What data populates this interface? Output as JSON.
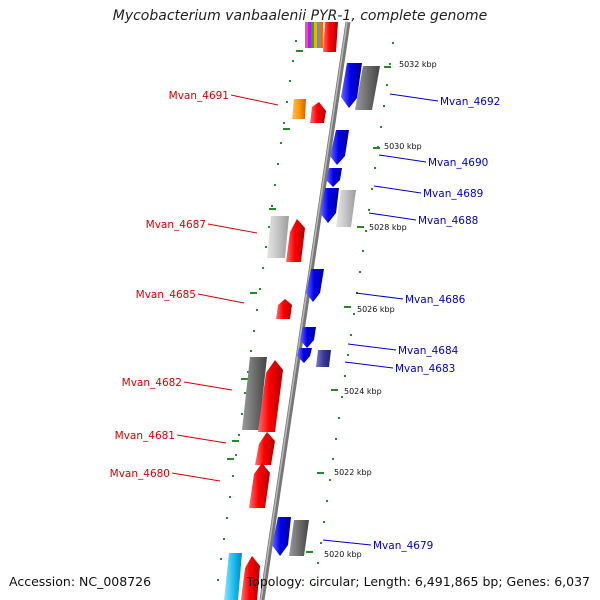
{
  "title": "Mycobacterium vanbaalenii PYR-1, complete genome",
  "footer": {
    "accession": "Accession: NC_008726",
    "topology": "Topology: circular; Length: 6,491,865 bp; Genes: 6,037"
  },
  "colors": {
    "forward_gene": "#ff0000",
    "reverse_gene": "#0000ee",
    "backbone": "#8c8c8c",
    "ticks": "#228b22",
    "label_forward": "#dd0000",
    "label_reverse": "#0000cc"
  },
  "scale_labels": [
    "5032 kbp",
    "5030 kbp",
    "5028 kbp",
    "5026 kbp",
    "5024 kbp",
    "5022 kbp",
    "5020 kbp"
  ],
  "genes_forward": [
    "Mvan_4691",
    "Mvan_4687",
    "Mvan_4685",
    "Mvan_4682",
    "Mvan_4681",
    "Mvan_4680"
  ],
  "genes_reverse": [
    "Mvan_4692",
    "Mvan_4690",
    "Mvan_4689",
    "Mvan_4688",
    "Mvan_4686",
    "Mvan_4684",
    "Mvan_4683",
    "Mvan_4679"
  ]
}
